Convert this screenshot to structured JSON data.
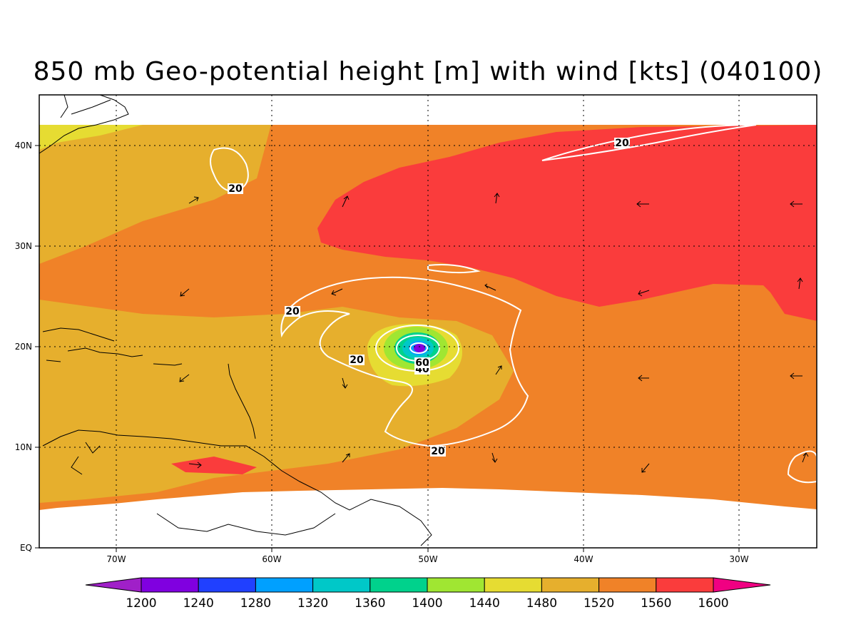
{
  "title": "850 mb Geo-potential height [m] with wind [kts] (040100)",
  "axes": {
    "lat_ticks": [
      "EQ",
      "10N",
      "20N",
      "30N",
      "40N"
    ],
    "lon_ticks": [
      "70W",
      "60W",
      "50W",
      "40W",
      "30W"
    ],
    "lon_range": [
      -75,
      -25
    ],
    "lat_range": [
      0,
      45
    ]
  },
  "colorbar": {
    "labels": [
      "1200",
      "1240",
      "1280",
      "1320",
      "1360",
      "1400",
      "1440",
      "1480",
      "1520",
      "1560",
      "1600"
    ],
    "colors": [
      "#a020c8",
      "#8000e0",
      "#2040ff",
      "#00a0ff",
      "#00c8c8",
      "#00d28c",
      "#a0e632",
      "#e6dc32",
      "#e6af2d",
      "#f08228",
      "#fa3c3c",
      "#f00082"
    ]
  },
  "contour_labels": {
    "wind_20_ne": "20",
    "wind_20_nw": "20",
    "wind_20_west": "20",
    "wind_20_center": "20",
    "wind_20_south": "20",
    "wind_40": "40",
    "wind_60": "60"
  },
  "chart_data": {
    "type": "heatmap",
    "title": "850 mb Geo-potential height [m] with wind [kts] (040100)",
    "xlabel": "",
    "ylabel": "",
    "xlim": [
      -75,
      -25
    ],
    "ylim": [
      0,
      45
    ],
    "colorbar_levels": [
      1200,
      1240,
      1280,
      1320,
      1360,
      1400,
      1440,
      1480,
      1520,
      1560,
      1600
    ],
    "wind_contours_kts": [
      20,
      40,
      60
    ],
    "low_center": {
      "lon": -50.5,
      "lat": 20
    },
    "grid": true
  }
}
